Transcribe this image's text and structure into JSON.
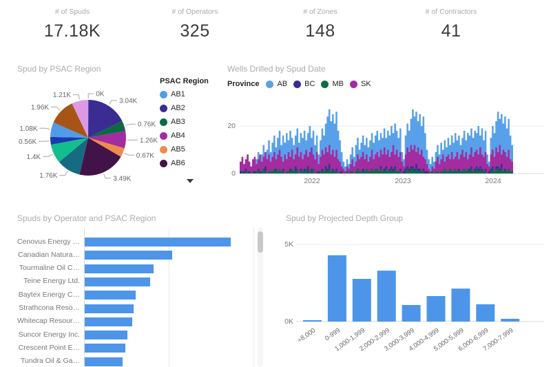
{
  "kpis": [
    {
      "label": "# of Spuds",
      "value": "17.18K"
    },
    {
      "label": "# of Operators",
      "value": "325"
    },
    {
      "label": "# of Zones",
      "value": "148"
    },
    {
      "label": "# of Contractors",
      "value": "41"
    }
  ],
  "pie_card": {
    "title": "Spud by PSAC Region",
    "legend_title": "PSAC Region",
    "legend": [
      {
        "label": "AB1",
        "color": "#4f9ce8"
      },
      {
        "label": "AB2",
        "color": "#3a2c93"
      },
      {
        "label": "AB3",
        "color": "#0c6a43"
      },
      {
        "label": "AB4",
        "color": "#a32ca0"
      },
      {
        "label": "AB5",
        "color": "#ee8c4b"
      },
      {
        "label": "AB6",
        "color": "#411349"
      }
    ],
    "more_icon": "chevron-down"
  },
  "wells_card": {
    "title": "Wells Drilled by Spud Date",
    "legend_title": "Province",
    "legend": [
      {
        "label": "AB",
        "color": "#58a1ea"
      },
      {
        "label": "BC",
        "color": "#3a2c93"
      },
      {
        "label": "MB",
        "color": "#0d6d45"
      },
      {
        "label": "SK",
        "color": "#a32ca0"
      }
    ]
  },
  "operators_card": {
    "title": "Spuds by Operator and PSAC Region"
  },
  "depth_card": {
    "title": "Spud by Projected Depth Group"
  },
  "chart_data": [
    {
      "id": "spud_by_psac_region",
      "type": "pie",
      "title": "Spud by PSAC Region",
      "unit": "K spuds",
      "labels": [
        "0K",
        "3.04K",
        "0.76K",
        "1.26K",
        "0.67K",
        "3.49K",
        "1.76K",
        "1.4K",
        "0.56K",
        "1.08K",
        "1.96K",
        "1.21K"
      ],
      "values": [
        0.02,
        3.04,
        0.76,
        1.26,
        0.67,
        3.49,
        1.76,
        1.4,
        0.56,
        1.08,
        1.96,
        1.21
      ],
      "colors": [
        "#4f9ce8",
        "#3a2c93",
        "#0c6a43",
        "#a32ca0",
        "#ee8c4b",
        "#411349",
        "#176b80",
        "#12be8e",
        "#1a3aae",
        "#4f9ce8",
        "#a75517",
        "#dc99e6"
      ],
      "legend_entries_visible": [
        "AB1",
        "AB2",
        "AB3",
        "AB4",
        "AB5",
        "AB6"
      ],
      "legend_position": "right"
    },
    {
      "id": "wells_drilled_by_spud_date",
      "type": "area",
      "title": "Wells Drilled by Spud Date",
      "x_ticks": [
        "2022",
        "2023",
        "2024"
      ],
      "x_range_approx": [
        "2021-03",
        "2024-03"
      ],
      "y_ticks": [
        0,
        20
      ],
      "ylim": [
        0,
        29
      ],
      "grid": true,
      "legend_position": "top",
      "series": [
        {
          "name": "AB",
          "color": "#58a1ea",
          "values": [
            3,
            6,
            2,
            4,
            8,
            3,
            2,
            5,
            4,
            6,
            9,
            5,
            8,
            12,
            7,
            10,
            14,
            9,
            13,
            16,
            11,
            15,
            18,
            12,
            16,
            13,
            17,
            14,
            18,
            15,
            12,
            16,
            19,
            13,
            17,
            15,
            18,
            14,
            17,
            20,
            15,
            18,
            12,
            16,
            8,
            14,
            19,
            16,
            21,
            24,
            27,
            22,
            25,
            21,
            26,
            18,
            14,
            9,
            5,
            3,
            6,
            4,
            8,
            11,
            7,
            12,
            15,
            10,
            13,
            16,
            12,
            15,
            11,
            14,
            17,
            13,
            16,
            18,
            14,
            17,
            15,
            19,
            15,
            18,
            16,
            20,
            17,
            21,
            18,
            15,
            19,
            9,
            6,
            16,
            21,
            18,
            23,
            27,
            24,
            26,
            22,
            25,
            20,
            24,
            17,
            10,
            6,
            4,
            7,
            5,
            9,
            12,
            8,
            13,
            10,
            14,
            11,
            15,
            12,
            16,
            13,
            17,
            14,
            16,
            12,
            15,
            18,
            14,
            17,
            16,
            19,
            15,
            18,
            17,
            20,
            16,
            19,
            14,
            18,
            8,
            5,
            15,
            20,
            17,
            22,
            26,
            23,
            25,
            21,
            24,
            19,
            23,
            16,
            12
          ]
        },
        {
          "name": "BC",
          "color": "#3a2c93",
          "values": [
            1,
            0,
            1,
            2,
            0,
            1,
            0,
            1,
            1,
            0,
            2,
            1,
            0,
            1,
            3,
            0,
            1,
            0,
            1,
            0,
            2,
            1,
            0,
            1,
            2,
            0,
            1,
            1,
            2,
            0,
            1,
            3,
            1,
            0,
            2,
            1,
            2,
            1,
            3,
            1,
            2,
            1,
            0,
            1,
            1,
            1,
            2,
            1,
            3,
            2,
            4,
            1,
            2,
            1,
            2,
            0,
            1,
            1,
            0,
            0,
            1,
            0,
            1,
            1,
            0,
            1,
            2,
            0,
            1,
            2,
            1,
            2,
            0,
            1,
            2,
            1,
            2,
            2,
            1,
            3,
            1,
            2,
            3,
            1,
            2,
            3,
            2,
            3,
            1,
            1,
            2,
            0,
            1,
            2,
            3,
            2,
            3,
            3,
            2,
            4,
            2,
            2,
            1,
            2,
            1,
            1,
            0,
            0,
            1,
            0,
            1,
            1,
            0,
            1,
            0,
            2,
            1,
            1,
            2,
            1,
            0,
            2,
            1,
            2,
            1,
            1,
            2,
            1,
            2,
            2,
            3,
            1,
            2,
            3,
            2,
            3,
            2,
            1,
            2,
            0,
            1,
            2,
            3,
            1,
            3,
            3,
            2,
            4,
            1,
            2,
            1,
            2,
            1,
            1
          ]
        },
        {
          "name": "MB",
          "color": "#0d6d45",
          "values": [
            0,
            1,
            0,
            1,
            1,
            0,
            0,
            1,
            0,
            1,
            1,
            0,
            1,
            2,
            1,
            0,
            1,
            1,
            1,
            2,
            1,
            1,
            2,
            1,
            1,
            0,
            1,
            1,
            1,
            2,
            1,
            1,
            2,
            0,
            1,
            1,
            1,
            2,
            1,
            1,
            1,
            2,
            0,
            1,
            0,
            1,
            1,
            1,
            2,
            1,
            2,
            1,
            1,
            1,
            1,
            0,
            1,
            0,
            0,
            0,
            1,
            0,
            1,
            1,
            0,
            1,
            2,
            1,
            1,
            1,
            1,
            2,
            1,
            1,
            2,
            1,
            2,
            2,
            1,
            2,
            1,
            1,
            2,
            1,
            1,
            2,
            1,
            2,
            1,
            1,
            1,
            0,
            0,
            1,
            2,
            1,
            2,
            2,
            1,
            2,
            1,
            1,
            1,
            1,
            0,
            0,
            1,
            0,
            1,
            0,
            1,
            1,
            0,
            1,
            1,
            2,
            1,
            1,
            2,
            1,
            1,
            2,
            1,
            1,
            1,
            1,
            2,
            1,
            2,
            1,
            2,
            1,
            1,
            2,
            1,
            2,
            1,
            1,
            1,
            0,
            0,
            1,
            2,
            1,
            2,
            2,
            1,
            2,
            1,
            1,
            1,
            2,
            1,
            1
          ]
        },
        {
          "name": "SK",
          "color": "#a32ca0",
          "values": [
            5,
            7,
            4,
            6,
            8,
            5,
            3,
            6,
            7,
            4,
            6,
            8,
            5,
            7,
            9,
            6,
            8,
            5,
            7,
            9,
            6,
            8,
            10,
            7,
            5,
            8,
            6,
            9,
            7,
            10,
            6,
            8,
            11,
            7,
            9,
            6,
            8,
            10,
            7,
            9,
            11,
            8,
            6,
            9,
            4,
            7,
            10,
            8,
            11,
            9,
            12,
            8,
            10,
            7,
            10,
            6,
            5,
            3,
            2,
            1,
            3,
            2,
            4,
            6,
            3,
            5,
            8,
            6,
            7,
            9,
            6,
            8,
            5,
            7,
            10,
            6,
            8,
            9,
            7,
            10,
            8,
            11,
            8,
            10,
            7,
            9,
            12,
            8,
            10,
            7,
            9,
            5,
            3,
            8,
            11,
            9,
            12,
            10,
            12,
            9,
            11,
            8,
            10,
            7,
            6,
            4,
            2,
            1,
            3,
            2,
            5,
            7,
            4,
            6,
            8,
            5,
            7,
            8,
            6,
            9,
            6,
            7,
            9,
            6,
            8,
            10,
            7,
            9,
            6,
            8,
            11,
            7,
            9,
            10,
            8,
            11,
            8,
            7,
            9,
            4,
            3,
            8,
            10,
            7,
            11,
            9,
            12,
            8,
            10,
            9,
            7,
            10,
            6,
            5
          ]
        }
      ]
    },
    {
      "id": "spuds_by_operator_and_psac_region",
      "type": "bar",
      "orientation": "horizontal",
      "title": "Spuds by Operator and PSAC Region",
      "categories": [
        "Cenovus Energy …",
        "Canadian Natura…",
        "Tourmaline Oil C…",
        "Teine Energy Ltd.",
        "Baytex Energy C…",
        "Strathcona Reso…",
        "Whitecap Resour…",
        "Suncor Energy Inc.",
        "Crescent Point E…",
        "Tundra Oil & Ga…"
      ],
      "values": [
        1.72,
        1.03,
        0.81,
        0.77,
        0.6,
        0.58,
        0.56,
        0.5,
        0.48,
        0.45
      ],
      "unit": "K",
      "xlim": [
        0,
        2
      ],
      "bar_color": "#4d95e8",
      "scrollbar": true
    },
    {
      "id": "spud_by_projected_depth_group",
      "type": "bar",
      "orientation": "vertical",
      "title": "Spud by Projected Depth Group",
      "categories": [
        "+8,000",
        "0-999",
        "1,000-1,999",
        "2,000-2,999",
        "3,000-3,999",
        "4,000-4,999",
        "5,000-5,999",
        "6,000-6,999",
        "7,000-7,999"
      ],
      "values": [
        0.09,
        4.3,
        2.77,
        3.3,
        1.07,
        1.65,
        2.14,
        1.12,
        0.18
      ],
      "unit": "K",
      "y_ticks": [
        "0K",
        "5K"
      ],
      "ylim": [
        0,
        5.2
      ],
      "bar_color": "#4d95e8"
    }
  ]
}
